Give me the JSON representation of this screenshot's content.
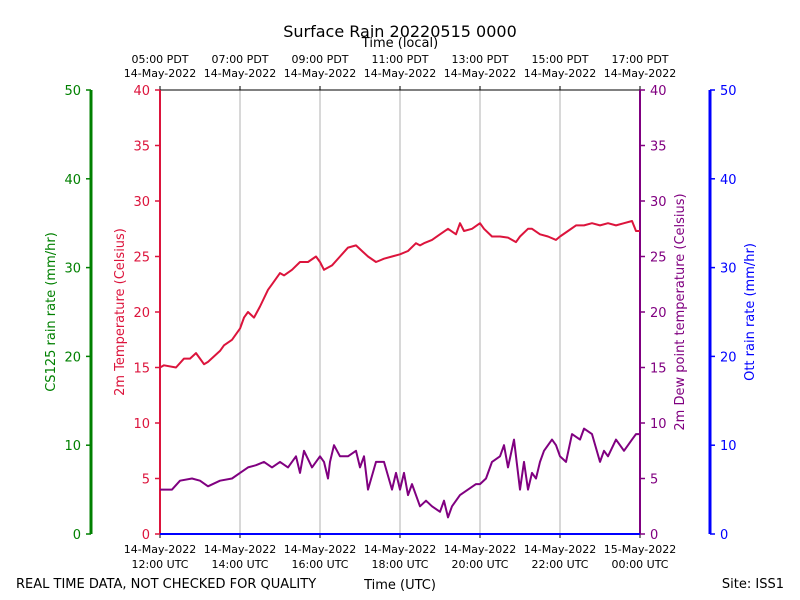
{
  "chart_data": {
    "type": "line",
    "title": "Surface Rain 20220515 0000",
    "top_axis_label": "Time (local)",
    "top_ticks": [
      {
        "t": 12,
        "line1": "05:00 PDT",
        "line2": "14-May-2022"
      },
      {
        "t": 14,
        "line1": "07:00 PDT",
        "line2": "14-May-2022"
      },
      {
        "t": 16,
        "line1": "09:00 PDT",
        "line2": "14-May-2022"
      },
      {
        "t": 18,
        "line1": "11:00 PDT",
        "line2": "14-May-2022"
      },
      {
        "t": 20,
        "line1": "13:00 PDT",
        "line2": "14-May-2022"
      },
      {
        "t": 22,
        "line1": "15:00 PDT",
        "line2": "14-May-2022"
      },
      {
        "t": 24,
        "line1": "17:00 PDT",
        "line2": "14-May-2022"
      }
    ],
    "bottom_axis_label": "Time (UTC)",
    "bottom_ticks": [
      {
        "t": 12,
        "line1": "14-May-2022",
        "line2": "12:00 UTC"
      },
      {
        "t": 14,
        "line1": "14-May-2022",
        "line2": "14:00 UTC"
      },
      {
        "t": 16,
        "line1": "14-May-2022",
        "line2": "16:00 UTC"
      },
      {
        "t": 18,
        "line1": "14-May-2022",
        "line2": "18:00 UTC"
      },
      {
        "t": 20,
        "line1": "14-May-2022",
        "line2": "20:00 UTC"
      },
      {
        "t": 22,
        "line1": "14-May-2022",
        "line2": "22:00 UTC"
      },
      {
        "t": 24,
        "line1": "15-May-2022",
        "line2": "00:00 UTC"
      }
    ],
    "xlim": [
      12,
      24
    ],
    "axes": {
      "cs125": {
        "label": "CS125 rain rate (mm/hr)",
        "ylim": [
          0,
          50
        ],
        "ticks": [
          0,
          10,
          20,
          30,
          40,
          50
        ],
        "color": "#008000"
      },
      "temp": {
        "label": "2m Temperature (Celsius)",
        "ylim": [
          0,
          40
        ],
        "ticks": [
          0,
          5,
          10,
          15,
          20,
          25,
          30,
          35,
          40
        ],
        "color": "#dc143c"
      },
      "dew": {
        "label": "2m Dew point temperature (Celsius)",
        "ylim": [
          0,
          40
        ],
        "ticks": [
          0,
          5,
          10,
          15,
          20,
          25,
          30,
          35,
          40
        ],
        "color": "#800080"
      },
      "ott": {
        "label": "Ott rain rate (mm/hr)",
        "ylim": [
          0,
          50
        ],
        "ticks": [
          0,
          10,
          20,
          30,
          40,
          50
        ],
        "color": "#0000ff"
      }
    },
    "series": [
      {
        "name": "2m Temperature",
        "axis": "temp",
        "color": "#dc143c",
        "x": [
          12.0,
          12.1,
          12.4,
          12.6,
          12.75,
          12.9,
          13.0,
          13.1,
          13.2,
          13.35,
          13.5,
          13.6,
          13.8,
          14.0,
          14.1,
          14.2,
          14.35,
          14.5,
          14.7,
          14.8,
          15.0,
          15.1,
          15.3,
          15.5,
          15.7,
          15.9,
          16.0,
          16.1,
          16.3,
          16.5,
          16.7,
          16.9,
          17.05,
          17.2,
          17.4,
          17.6,
          17.8,
          18.0,
          18.2,
          18.4,
          18.5,
          18.6,
          18.8,
          19.0,
          19.2,
          19.4,
          19.5,
          19.6,
          19.8,
          20.0,
          20.1,
          20.3,
          20.5,
          20.7,
          20.9,
          21.0,
          21.2,
          21.3,
          21.5,
          21.7,
          21.9,
          22.0,
          22.2,
          22.4,
          22.6,
          22.8,
          23.0,
          23.2,
          23.4,
          23.6,
          23.8,
          23.9,
          24.0
        ],
        "values": [
          15.0,
          15.2,
          15.0,
          15.8,
          15.8,
          16.3,
          15.8,
          15.3,
          15.5,
          16.0,
          16.5,
          17.0,
          17.5,
          18.5,
          19.5,
          20.0,
          19.5,
          20.5,
          22.0,
          22.5,
          23.5,
          23.3,
          23.8,
          24.5,
          24.5,
          25.0,
          24.5,
          23.8,
          24.2,
          25.0,
          25.8,
          26.0,
          25.5,
          25.0,
          24.5,
          24.8,
          25.0,
          25.2,
          25.5,
          26.2,
          26.0,
          26.2,
          26.5,
          27.0,
          27.5,
          27.0,
          28.0,
          27.3,
          27.5,
          28.0,
          27.5,
          26.8,
          26.8,
          26.7,
          26.3,
          26.8,
          27.5,
          27.5,
          27.0,
          26.8,
          26.5,
          26.8,
          27.3,
          27.8,
          27.8,
          28.0,
          27.8,
          28.0,
          27.8,
          28.0,
          28.2,
          27.3,
          27.3
        ]
      },
      {
        "name": "2m Dew point temperature",
        "axis": "dew",
        "color": "#800080",
        "x": [
          12.0,
          12.3,
          12.5,
          12.8,
          13.0,
          13.2,
          13.5,
          13.8,
          14.0,
          14.2,
          14.4,
          14.6,
          14.8,
          15.0,
          15.2,
          15.4,
          15.5,
          15.6,
          15.8,
          16.0,
          16.1,
          16.2,
          16.25,
          16.35,
          16.5,
          16.7,
          16.9,
          17.0,
          17.1,
          17.2,
          17.4,
          17.6,
          17.8,
          17.9,
          18.0,
          18.1,
          18.2,
          18.3,
          18.5,
          18.65,
          18.8,
          19.0,
          19.1,
          19.2,
          19.3,
          19.5,
          19.7,
          19.9,
          20.0,
          20.15,
          20.3,
          20.5,
          20.6,
          20.7,
          20.85,
          21.0,
          21.1,
          21.2,
          21.3,
          21.4,
          21.5,
          21.6,
          21.8,
          21.9,
          22.0,
          22.15,
          22.3,
          22.5,
          22.6,
          22.8,
          23.0,
          23.1,
          23.2,
          23.4,
          23.6,
          23.8,
          23.9,
          24.0
        ],
        "values": [
          4.0,
          4.0,
          4.8,
          5.0,
          4.8,
          4.3,
          4.8,
          5.0,
          5.5,
          6.0,
          6.2,
          6.5,
          6.0,
          6.5,
          6.0,
          7.0,
          5.5,
          7.5,
          6.0,
          7.0,
          6.5,
          5.0,
          6.5,
          8.0,
          7.0,
          7.0,
          7.5,
          6.0,
          7.0,
          4.0,
          6.5,
          6.5,
          4.0,
          5.5,
          4.0,
          5.5,
          3.5,
          4.5,
          2.5,
          3.0,
          2.5,
          2.0,
          3.0,
          1.5,
          2.5,
          3.5,
          4.0,
          4.5,
          4.5,
          5.0,
          6.5,
          7.0,
          8.0,
          6.0,
          8.5,
          4.0,
          6.5,
          4.0,
          5.5,
          5.0,
          6.5,
          7.5,
          8.5,
          8.0,
          7.0,
          6.5,
          9.0,
          8.5,
          9.5,
          9.0,
          6.5,
          7.5,
          7.0,
          8.5,
          7.5,
          8.5,
          9.0,
          9.0
        ]
      },
      {
        "name": "CS125 rain rate",
        "axis": "cs125",
        "color": "#008000",
        "x": [
          12,
          24
        ],
        "values": [
          0,
          0
        ]
      },
      {
        "name": "Ott rain rate",
        "axis": "ott",
        "color": "#0000ff",
        "x": [
          12,
          24
        ],
        "values": [
          0,
          0
        ]
      }
    ]
  },
  "footer": {
    "left_note": "REAL TIME DATA, NOT CHECKED FOR QUALITY",
    "site": "Site: ISS1"
  }
}
